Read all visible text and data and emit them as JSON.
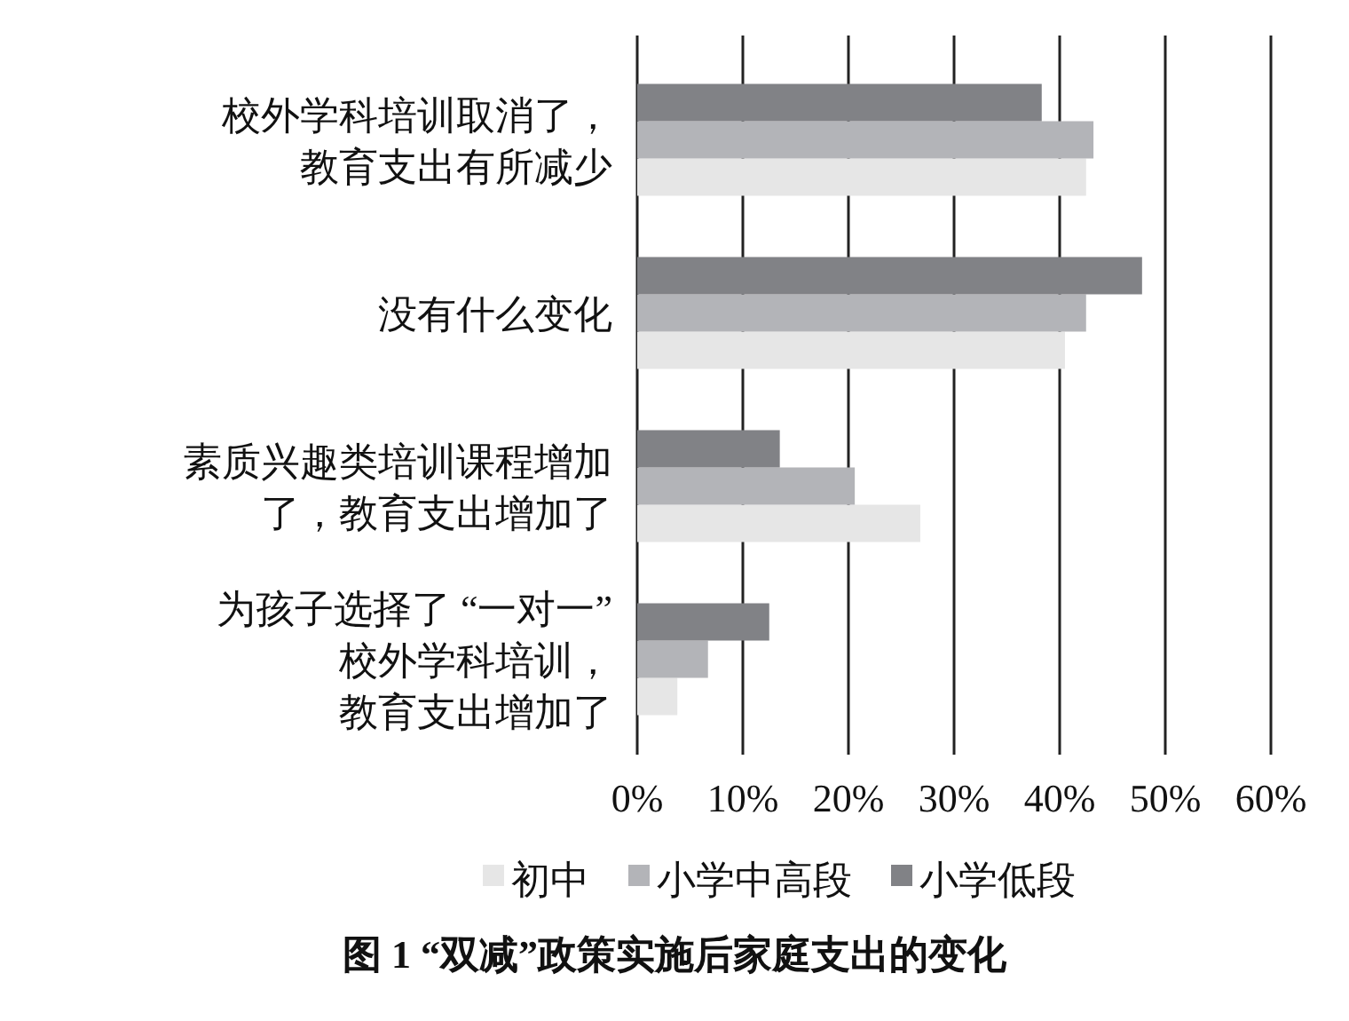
{
  "chart_data": {
    "type": "bar",
    "orientation": "horizontal",
    "title": "图 1 “双减”政策实施后家庭支出的变化",
    "categories": [
      "校外学科培训取消了，教育支出有所减少",
      "没有什么变化",
      "素质兴趣类培训课程增加了，教育支出增加了",
      "为孩子选择了 “一对一”校外学科培训，教育支出增加了"
    ],
    "series": [
      {
        "name": "初中",
        "color": "#e6e6e6",
        "values": [
          42.5,
          40.5,
          26.8,
          3.8
        ]
      },
      {
        "name": "小学中高段",
        "color": "#b3b4b8",
        "values": [
          43.2,
          42.5,
          20.6,
          6.7
        ]
      },
      {
        "name": "小学低段",
        "color": "#818286",
        "values": [
          38.3,
          47.8,
          13.5,
          12.5
        ]
      }
    ],
    "xlim": [
      0,
      60
    ],
    "xticks": [
      {
        "value": 0,
        "label": "0%"
      },
      {
        "value": 10,
        "label": "10%"
      },
      {
        "value": 20,
        "label": "20%"
      },
      {
        "value": 30,
        "label": "30%"
      },
      {
        "value": 40,
        "label": "40%"
      },
      {
        "value": 50,
        "label": "50%"
      },
      {
        "value": 60,
        "label": "60%"
      }
    ],
    "grid": "x",
    "legend": "bottom"
  }
}
